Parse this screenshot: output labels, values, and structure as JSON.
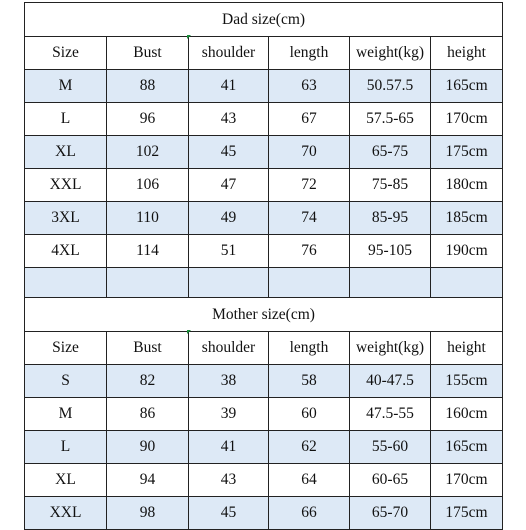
{
  "dad": {
    "title": "Dad size(cm)",
    "headers": [
      "Size",
      "Bust",
      "shoulder",
      "length",
      "weight(kg)",
      "height"
    ],
    "rows": [
      [
        "M",
        "88",
        "41",
        "63",
        "50.57.5",
        "165cm"
      ],
      [
        "L",
        "96",
        "43",
        "67",
        "57.5-65",
        "170cm"
      ],
      [
        "XL",
        "102",
        "45",
        "70",
        "65-75",
        "175cm"
      ],
      [
        "XXL",
        "106",
        "47",
        "72",
        "75-85",
        "180cm"
      ],
      [
        "3XL",
        "110",
        "49",
        "74",
        "85-95",
        "185cm"
      ],
      [
        "4XL",
        "114",
        "51",
        "76",
        "95-105",
        "190cm"
      ],
      [
        "",
        "",
        "",
        "",
        "",
        ""
      ]
    ]
  },
  "mom": {
    "title": "Mother size(cm)",
    "headers": [
      "Size",
      "Bust",
      "shoulder",
      "length",
      "weight(kg)",
      "height"
    ],
    "rows": [
      [
        "S",
        "82",
        "38",
        "58",
        "40-47.5",
        "155cm"
      ],
      [
        "M",
        "86",
        "39",
        "60",
        "47.5-55",
        "160cm"
      ],
      [
        "L",
        "90",
        "41",
        "62",
        "55-60",
        "165cm"
      ],
      [
        "XL",
        "94",
        "43",
        "64",
        "60-65",
        "170cm"
      ],
      [
        "XXL",
        "98",
        "45",
        "66",
        "65-70",
        "175cm"
      ]
    ]
  },
  "colors": {
    "row_shade": "#dde9f6",
    "border": "#222222",
    "marker": "#1a8f3a"
  }
}
